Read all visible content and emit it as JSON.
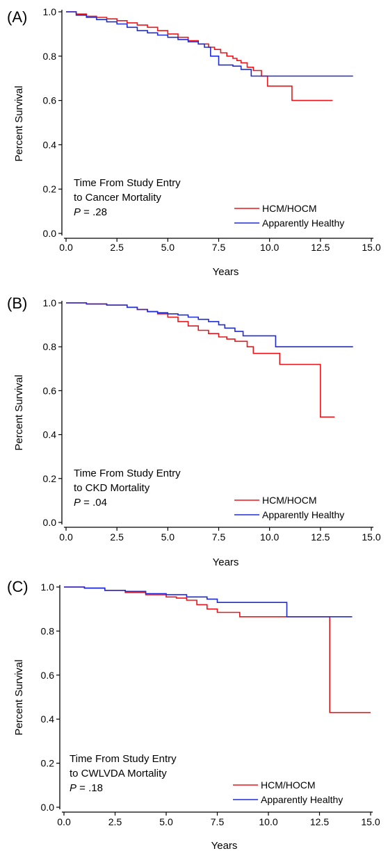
{
  "chart_data": [
    {
      "panel": "(A)",
      "type": "line",
      "xlabel": "Years",
      "ylabel": "Percent Survival",
      "xlim": [
        0,
        15
      ],
      "ylim": [
        0,
        1
      ],
      "xticks": [
        "0.0",
        "2.5",
        "5.0",
        "7.5",
        "10.0",
        "12.5",
        "15.0"
      ],
      "yticks": [
        "0.0",
        "0.2",
        "0.4",
        "0.6",
        "0.8",
        "1.0"
      ],
      "annotation": [
        "Time From Study Entry",
        "to Cancer Mortality"
      ],
      "p_label": "P",
      "p_value": " = .28",
      "legend_position": "bottom-right",
      "series": [
        {
          "name": "HCM/HOCM",
          "color": "#e8161b",
          "x": [
            0,
            0.5,
            1.0,
            1.5,
            2.0,
            2.5,
            3.0,
            3.5,
            4.0,
            4.5,
            5.0,
            5.5,
            6.0,
            6.5,
            7.0,
            7.3,
            7.6,
            7.9,
            8.2,
            8.4,
            8.6,
            8.9,
            9.2,
            9.6,
            9.9,
            11.1,
            13.1
          ],
          "y": [
            1.0,
            0.99,
            0.98,
            0.975,
            0.968,
            0.96,
            0.95,
            0.94,
            0.93,
            0.915,
            0.9,
            0.885,
            0.87,
            0.855,
            0.84,
            0.83,
            0.815,
            0.8,
            0.79,
            0.78,
            0.77,
            0.75,
            0.735,
            0.71,
            0.665,
            0.6,
            0.6
          ]
        },
        {
          "name": "Apparently Healthy",
          "color": "#1e2bd8",
          "x": [
            0,
            0.5,
            1.0,
            1.5,
            2.0,
            2.5,
            3.0,
            3.5,
            4.0,
            4.5,
            5.0,
            5.5,
            6.0,
            6.5,
            6.8,
            7.1,
            7.5,
            7.8,
            8.2,
            8.6,
            9.1,
            9.8,
            14.1
          ],
          "y": [
            1.0,
            0.985,
            0.975,
            0.965,
            0.955,
            0.945,
            0.93,
            0.915,
            0.905,
            0.895,
            0.885,
            0.875,
            0.865,
            0.855,
            0.84,
            0.8,
            0.76,
            0.76,
            0.755,
            0.74,
            0.71,
            0.71,
            0.71
          ]
        }
      ]
    },
    {
      "panel": "(B)",
      "type": "line",
      "xlabel": "Years",
      "ylabel": "Percent Survival",
      "xlim": [
        0,
        15
      ],
      "ylim": [
        0,
        1
      ],
      "xticks": [
        "0.0",
        "2.5",
        "5.0",
        "7.5",
        "10.0",
        "12.5",
        "15.0"
      ],
      "yticks": [
        "0.0",
        "0.2",
        "0.4",
        "0.6",
        "0.8",
        "1.0"
      ],
      "annotation": [
        "Time From Study Entry",
        "to CKD Mortality"
      ],
      "p_label": "P",
      "p_value": " = .04",
      "legend_position": "bottom-right",
      "series": [
        {
          "name": "HCM/HOCM",
          "color": "#e8161b",
          "x": [
            0,
            1.0,
            2.0,
            3.0,
            3.5,
            4.0,
            4.5,
            5.0,
            5.5,
            6.0,
            6.5,
            7.0,
            7.5,
            7.9,
            8.3,
            8.9,
            9.2,
            10.5,
            12.5,
            13.2
          ],
          "y": [
            1.0,
            0.995,
            0.99,
            0.98,
            0.97,
            0.96,
            0.95,
            0.935,
            0.915,
            0.895,
            0.875,
            0.86,
            0.845,
            0.835,
            0.825,
            0.8,
            0.77,
            0.72,
            0.48,
            0.48
          ]
        },
        {
          "name": "Apparently Healthy",
          "color": "#1e2bd8",
          "x": [
            0,
            1.0,
            2.0,
            3.0,
            3.5,
            4.0,
            4.5,
            5.0,
            5.5,
            6.0,
            6.5,
            7.0,
            7.5,
            7.8,
            8.3,
            8.7,
            10.3,
            14.1
          ],
          "y": [
            1.0,
            0.995,
            0.99,
            0.98,
            0.97,
            0.96,
            0.955,
            0.95,
            0.945,
            0.935,
            0.925,
            0.915,
            0.9,
            0.885,
            0.87,
            0.85,
            0.8,
            0.8
          ]
        }
      ]
    },
    {
      "panel": "(C)",
      "type": "line",
      "xlabel": "Years",
      "ylabel": "Percent Survival",
      "xlim": [
        0,
        15
      ],
      "ylim": [
        0,
        1
      ],
      "xticks": [
        "0.0",
        "2.5",
        "5.0",
        "7.5",
        "10.0",
        "12.5",
        "15.0"
      ],
      "yticks": [
        "0.0",
        "0.2",
        "0.4",
        "0.6",
        "0.8",
        "1.0"
      ],
      "annotation": [
        "Time From Study Entry",
        "to CWLVDA Mortality"
      ],
      "p_label": "P",
      "p_value": " = .18",
      "legend_position": "bottom-right",
      "series": [
        {
          "name": "HCM/HOCM",
          "color": "#e8161b",
          "x": [
            0,
            1.0,
            2.0,
            3.0,
            4.0,
            5.0,
            5.5,
            6.0,
            6.5,
            7.0,
            7.5,
            8.6,
            13.0,
            15.0
          ],
          "y": [
            1.0,
            0.995,
            0.985,
            0.975,
            0.965,
            0.955,
            0.95,
            0.94,
            0.92,
            0.9,
            0.885,
            0.865,
            0.43,
            0.43
          ]
        },
        {
          "name": "Apparently Healthy",
          "color": "#1e2bd8",
          "x": [
            0,
            1.0,
            2.0,
            3.0,
            4.0,
            5.0,
            6.0,
            7.0,
            7.5,
            10.9,
            14.1
          ],
          "y": [
            1.0,
            0.995,
            0.985,
            0.98,
            0.97,
            0.965,
            0.955,
            0.945,
            0.93,
            0.865,
            0.865
          ]
        }
      ]
    }
  ]
}
